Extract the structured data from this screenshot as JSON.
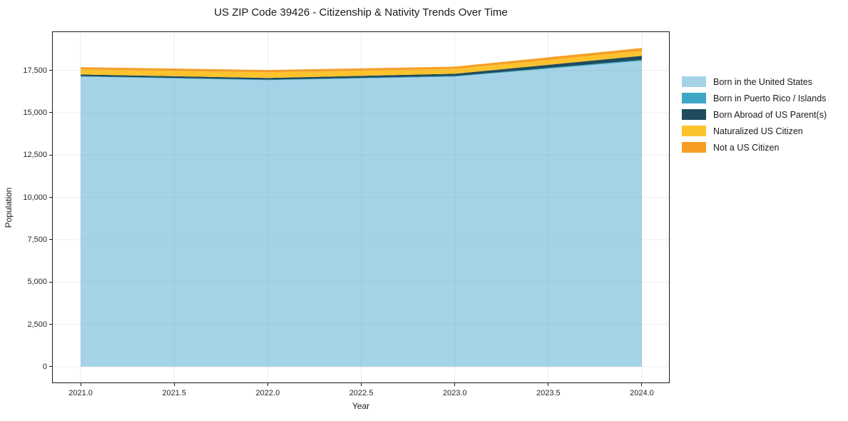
{
  "chart_data": {
    "type": "area",
    "stacked": true,
    "title": "US ZIP Code 39426 - Citizenship & Nativity Trends Over Time",
    "xlabel": "Year",
    "ylabel": "Population",
    "x": [
      2021,
      2022,
      2023,
      2024
    ],
    "series": [
      {
        "name": "Born in the United States",
        "color": "#a4d3e8",
        "values": [
          17130,
          16920,
          17130,
          18060
        ]
      },
      {
        "name": "Born in Puerto Rico / Islands",
        "color": "#3fa7c6",
        "values": [
          30,
          30,
          40,
          60
        ]
      },
      {
        "name": "Born Abroad of US Parent(s)",
        "color": "#1f4b5e",
        "values": [
          100,
          100,
          130,
          240
        ]
      },
      {
        "name": "Naturalized US Citizen",
        "color": "#fcc32d",
        "values": [
          300,
          340,
          290,
          290
        ]
      },
      {
        "name": "Not a US Citizen",
        "color": "#f89e24",
        "values": [
          130,
          130,
          130,
          170
        ]
      }
    ],
    "x_ticks": {
      "values": [
        2021.0,
        2021.5,
        2022.0,
        2022.5,
        2023.0,
        2023.5,
        2024.0
      ],
      "labels": [
        "2021.0",
        "2021.5",
        "2022.0",
        "2022.5",
        "2023.0",
        "2023.5",
        "2024.0"
      ]
    },
    "y_ticks": {
      "values": [
        0,
        2500,
        5000,
        7500,
        10000,
        12500,
        15000,
        17500
      ],
      "labels": [
        "0",
        "2,500",
        "5,000",
        "7,500",
        "10,000",
        "12,500",
        "15,000",
        "17,500"
      ]
    },
    "xlim": [
      2020.851,
      2024.145
    ],
    "ylim": [
      -930,
      19760
    ],
    "grid": true,
    "gridline_color": "rgba(140,140,140,0.16)",
    "legend_position": "right-outside",
    "spine_color": "#1a1a1a"
  }
}
